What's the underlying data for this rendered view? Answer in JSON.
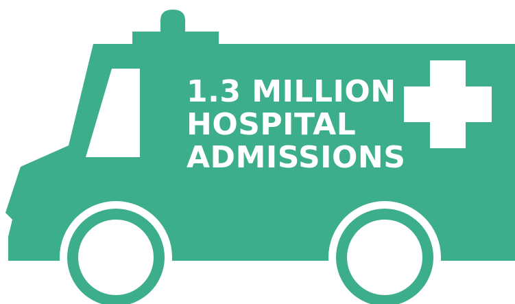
{
  "headline": {
    "line1": "1.3 MILLION",
    "line2": "HOSPITAL",
    "line3": "ADMISSIONS"
  },
  "colors": {
    "vehicle": "#3dae8b",
    "text": "#ffffff",
    "background": "#ffffff"
  },
  "icons": {
    "vehicle": "ambulance-icon",
    "cross": "medical-cross-icon",
    "light": "siren-light-icon"
  }
}
